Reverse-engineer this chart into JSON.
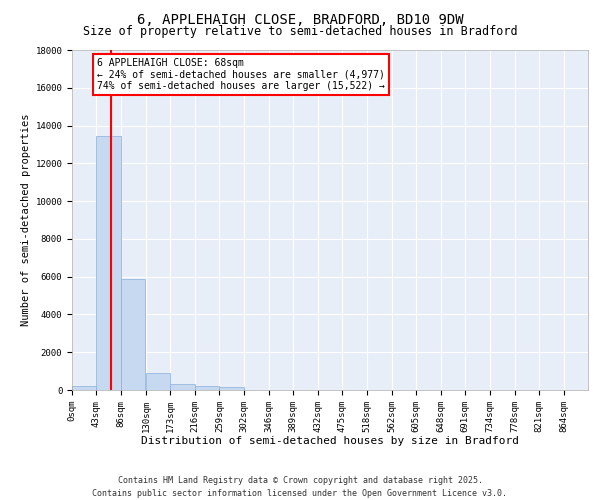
{
  "title1": "6, APPLEHAIGH CLOSE, BRADFORD, BD10 9DW",
  "title2": "Size of property relative to semi-detached houses in Bradford",
  "xlabel": "Distribution of semi-detached houses by size in Bradford",
  "ylabel": "Number of semi-detached properties",
  "bins": [
    0,
    43,
    86,
    130,
    173,
    216,
    259,
    302,
    346,
    389,
    432,
    475,
    518,
    562,
    605,
    648,
    691,
    734,
    778,
    821,
    864
  ],
  "bin_labels": [
    "0sqm",
    "43sqm",
    "86sqm",
    "130sqm",
    "173sqm",
    "216sqm",
    "259sqm",
    "302sqm",
    "346sqm",
    "389sqm",
    "432sqm",
    "475sqm",
    "518sqm",
    "562sqm",
    "605sqm",
    "648sqm",
    "691sqm",
    "734sqm",
    "778sqm",
    "821sqm",
    "864sqm"
  ],
  "bar_heights": [
    200,
    13450,
    5900,
    900,
    300,
    200,
    150,
    0,
    0,
    0,
    0,
    0,
    0,
    0,
    0,
    0,
    0,
    0,
    0,
    0
  ],
  "bar_color": "#c6d9f0",
  "bar_edge_color": "#8ab0d8",
  "bar_alpha": 1.0,
  "vline_x": 68,
  "vline_color": "red",
  "ylim": [
    0,
    18000
  ],
  "annotation_text": "6 APPLEHAIGH CLOSE: 68sqm\n← 24% of semi-detached houses are smaller (4,977)\n74% of semi-detached houses are larger (15,522) →",
  "annotation_box_color": "white",
  "annotation_box_edge_color": "red",
  "footer1": "Contains HM Land Registry data © Crown copyright and database right 2025.",
  "footer2": "Contains public sector information licensed under the Open Government Licence v3.0.",
  "bg_color": "#ffffff",
  "plot_bg_color": "#e8eef8",
  "grid_color": "#ffffff",
  "title1_fontsize": 10,
  "title2_fontsize": 8.5,
  "xlabel_fontsize": 8,
  "ylabel_fontsize": 7.5,
  "tick_fontsize": 6.5,
  "annotation_fontsize": 7,
  "footer_fontsize": 6
}
